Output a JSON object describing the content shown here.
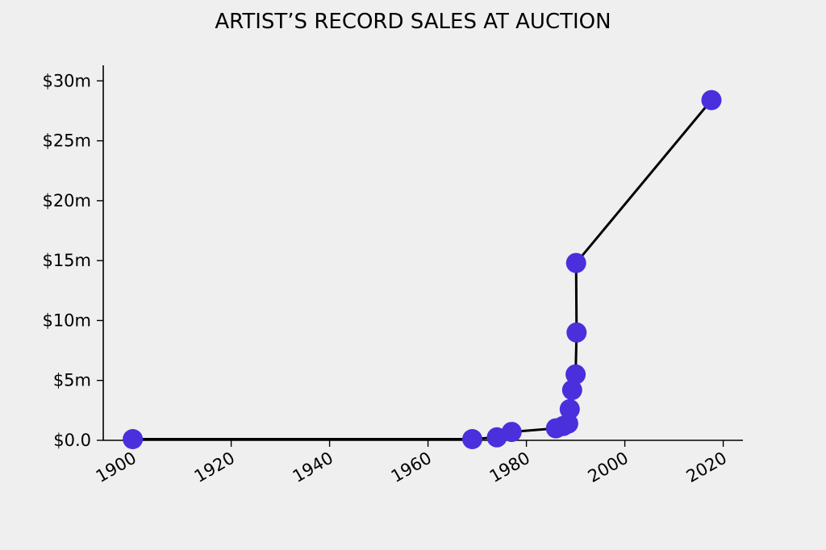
{
  "chart_data": {
    "type": "line",
    "title": "ARTIST’S RECORD SALES AT AUCTION",
    "xlabel": "",
    "ylabel": "",
    "xlim": [
      1894,
      2024
    ],
    "ylim": [
      0,
      31.3
    ],
    "x_ticks": [
      1900,
      1920,
      1940,
      1960,
      1980,
      2000,
      2020
    ],
    "x_tick_labels": [
      "1900",
      "1920",
      "1940",
      "1960",
      "1980",
      "2000",
      "2020"
    ],
    "y_ticks": [
      0,
      5,
      10,
      15,
      20,
      25,
      30
    ],
    "y_tick_labels": [
      "$0.0",
      "$5m",
      "$10m",
      "$15m",
      "$20m",
      "$25m",
      "$30m"
    ],
    "grid": false,
    "colors": {
      "marker": "#4a2fdc",
      "line": "#000000",
      "background": "#efefef"
    },
    "series": [
      {
        "x": [
          1900,
          1969,
          1974,
          1977,
          1986,
          1987.5,
          1988.5,
          1988.8,
          1989.3,
          1990,
          1990.2,
          1990.1,
          2017.6
        ],
        "y": [
          0.1,
          0.1,
          0.25,
          0.7,
          1.0,
          1.2,
          1.4,
          2.6,
          4.2,
          5.5,
          9.0,
          14.8,
          28.4
        ]
      }
    ]
  }
}
